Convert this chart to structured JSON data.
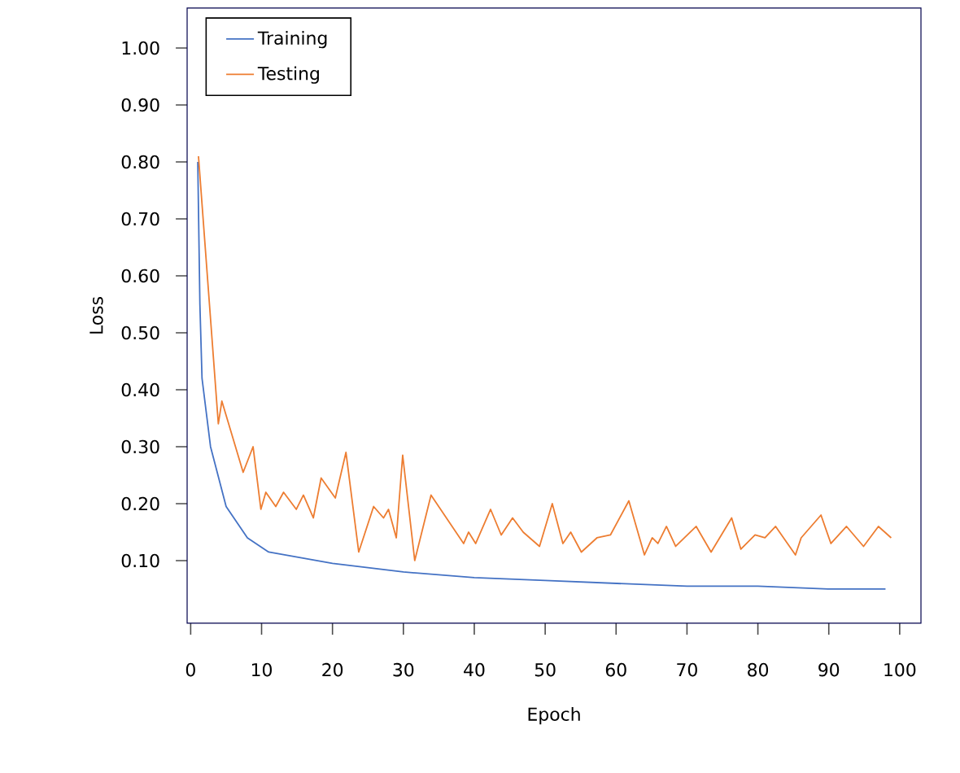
{
  "chart_data": {
    "type": "line",
    "xlabel": "Epoch",
    "ylabel": "Loss",
    "xlim": [
      -0.5,
      103
    ],
    "ylim": [
      -0.01,
      1.07
    ],
    "xticks": [
      0,
      10,
      20,
      30,
      40,
      50,
      60,
      70,
      80,
      90,
      100
    ],
    "yticks": [
      {
        "value": 0.1,
        "label": "0.10"
      },
      {
        "value": 0.2,
        "label": "0.20"
      },
      {
        "value": 0.3,
        "label": "0.30"
      },
      {
        "value": 0.4,
        "label": "0.40"
      },
      {
        "value": 0.5,
        "label": "0.50"
      },
      {
        "value": 0.6,
        "label": "0.60"
      },
      {
        "value": 0.7,
        "label": "0.70"
      },
      {
        "value": 0.8,
        "label": "0.80"
      },
      {
        "value": 0.9,
        "label": "0.90"
      },
      {
        "value": 1.0,
        "label": "1.00"
      }
    ],
    "legend": "top left",
    "grid": false,
    "marker": "none",
    "line_style": "solid",
    "series": [
      {
        "name": "Training",
        "color": "#4472c4",
        "x": [
          1,
          1.3,
          1.6,
          2.8,
          5,
          8,
          11,
          20,
          30,
          40,
          50,
          60,
          70,
          80,
          90,
          98
        ],
        "values": [
          0.8,
          0.55,
          0.42,
          0.3,
          0.195,
          0.14,
          0.115,
          0.095,
          0.08,
          0.07,
          0.065,
          0.06,
          0.055,
          0.055,
          0.05,
          0.05
        ]
      },
      {
        "name": "Testing",
        "color": "#ed7d31",
        "x": [
          1.1,
          3.9,
          4.4,
          7.4,
          8.8,
          9.9,
          10.6,
          12,
          13.1,
          14.9,
          15.9,
          17.3,
          18.4,
          20.4,
          21.9,
          23.7,
          25.8,
          27.2,
          27.9,
          29,
          29.9,
          31.6,
          33.9,
          38.5,
          39.2,
          40.2,
          42.3,
          43.8,
          45.4,
          46.9,
          49.2,
          51,
          52.5,
          53.6,
          55.1,
          57.3,
          59.2,
          61.8,
          64,
          65.1,
          65.9,
          67.1,
          68.4,
          71.3,
          73.4,
          76.3,
          77.6,
          79.6,
          81,
          82.5,
          85.3,
          86.1,
          88.9,
          90.3,
          92.5,
          94.9,
          97,
          98.8
        ],
        "values": [
          0.81,
          0.34,
          0.38,
          0.255,
          0.3,
          0.19,
          0.22,
          0.195,
          0.22,
          0.19,
          0.215,
          0.175,
          0.245,
          0.21,
          0.29,
          0.115,
          0.195,
          0.175,
          0.19,
          0.14,
          0.285,
          0.1,
          0.215,
          0.13,
          0.15,
          0.13,
          0.19,
          0.145,
          0.175,
          0.15,
          0.125,
          0.2,
          0.13,
          0.15,
          0.115,
          0.14,
          0.145,
          0.205,
          0.11,
          0.14,
          0.13,
          0.16,
          0.125,
          0.16,
          0.115,
          0.175,
          0.12,
          0.145,
          0.14,
          0.16,
          0.11,
          0.14,
          0.18,
          0.13,
          0.16,
          0.125,
          0.16,
          0.14
        ]
      }
    ]
  }
}
